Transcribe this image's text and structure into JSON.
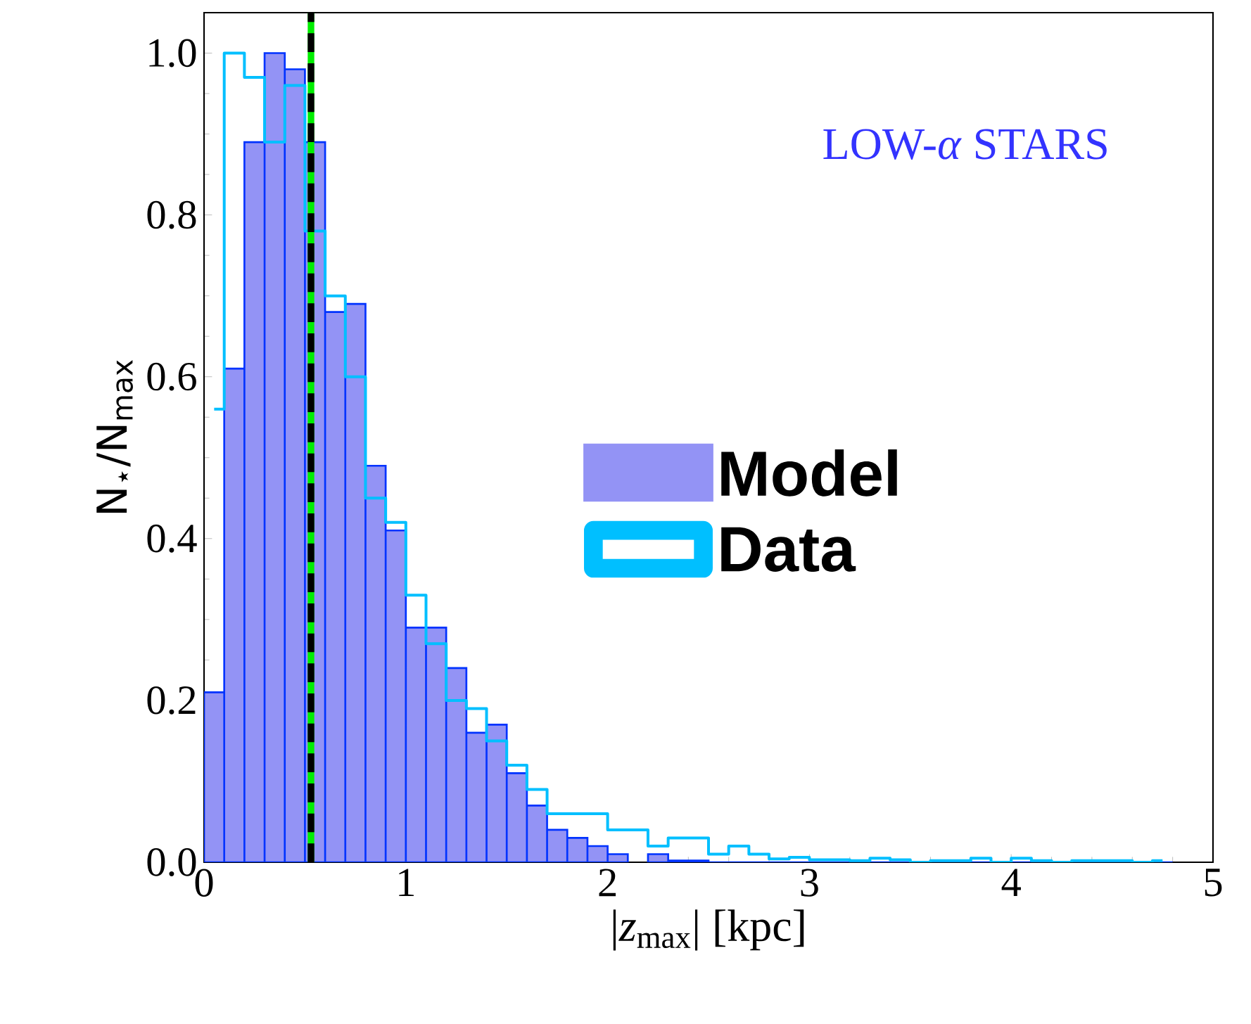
{
  "chart_data": {
    "type": "histogram",
    "xlabel": "|*z*$_{max}$| [kpc]",
    "ylabel": "N$_{⋆}$/N$_{max}$",
    "annotations": [
      "LOW-*α* STARS"
    ],
    "bins": [
      0,
      0.1,
      0.2,
      0.3,
      0.4,
      0.5,
      0.6,
      0.7,
      0.8,
      0.9,
      1.0,
      1.1,
      1.2,
      1.3,
      1.4,
      1.5,
      1.6,
      1.7,
      1.8,
      1.9,
      2.0,
      2.1,
      2.2,
      2.3,
      2.4,
      2.5,
      2.6,
      2.7,
      2.8,
      2.9,
      3.0,
      3.1,
      3.2,
      3.3,
      3.4,
      3.5,
      3.6,
      3.7,
      3.8,
      3.9,
      4.0,
      4.1,
      4.2,
      4.3,
      4.4,
      4.5,
      4.6,
      4.7,
      4.8
    ],
    "series": [
      {
        "name": "Model",
        "color": "#9393f5",
        "values": [
          0.21,
          0.61,
          0.89,
          1.0,
          0.98,
          0.89,
          0.68,
          0.69,
          0.49,
          0.41,
          0.29,
          0.29,
          0.24,
          0.16,
          0.17,
          0.11,
          0.07,
          0.04,
          0.03,
          0.02,
          0.01,
          null,
          0.01,
          0.002,
          0.002,
          0,
          0,
          0,
          0,
          0,
          0,
          0,
          0,
          0,
          0,
          0,
          0,
          0,
          0,
          0,
          0,
          0,
          0,
          0,
          0,
          0,
          0,
          0
        ]
      },
      {
        "name": "Data",
        "type": "step",
        "color": "#00bfff",
        "x": [
          0.05,
          0.15,
          0.25,
          0.35,
          0.45,
          0.55,
          0.65,
          0.75,
          0.85,
          0.95,
          1.05,
          1.15,
          1.25,
          1.35,
          1.45,
          1.55,
          1.65,
          1.75,
          1.85,
          1.95,
          2.05,
          2.15,
          2.25,
          2.35,
          2.45,
          2.55,
          2.65,
          2.75,
          2.85,
          2.95,
          3.05,
          3.15,
          3.25,
          3.35,
          3.45,
          3.55,
          3.65,
          3.75,
          3.85,
          3.95,
          4.05,
          4.15,
          4.25,
          4.35,
          4.45,
          4.55,
          4.65,
          4.75
        ],
        "values": [
          0.56,
          1.0,
          0.97,
          0.89,
          0.96,
          0.78,
          0.7,
          0.6,
          0.45,
          0.42,
          0.33,
          0.27,
          0.2,
          0.19,
          0.15,
          0.12,
          0.09,
          0.06,
          0.06,
          0.06,
          0.04,
          0.04,
          0.02,
          0.03,
          0.03,
          0.01,
          0.02,
          0.01,
          0.004,
          0.006,
          0.003,
          0.003,
          0.002,
          0.005,
          0.003,
          0,
          0.002,
          0.002,
          0.005,
          0,
          0.005,
          0.002,
          0,
          0.002,
          0.002,
          0.002,
          0,
          0.002
        ]
      }
    ],
    "ref_lines": [
      {
        "axis": "x",
        "value": 0.53,
        "color": "#00ee00",
        "line_style": "solid"
      },
      {
        "axis": "x",
        "value": 0.53,
        "color": "#000000",
        "line_style": "dashed"
      }
    ],
    "xlim": [
      0,
      5
    ],
    "ylim": [
      0,
      1.05
    ],
    "xticks": [
      {
        "value": 0,
        "label": "0"
      },
      {
        "value": 1,
        "label": "1"
      },
      {
        "value": 2,
        "label": "2"
      },
      {
        "value": 3,
        "label": "3"
      },
      {
        "value": 4,
        "label": "4"
      },
      {
        "value": 5,
        "label": "5"
      }
    ],
    "yticks": [
      {
        "value": 0,
        "label": "0.0"
      },
      {
        "value": 0.2,
        "label": "0.2"
      },
      {
        "value": 0.4,
        "label": "0.4"
      },
      {
        "value": 0.6,
        "label": "0.6"
      },
      {
        "value": 0.8,
        "label": "0.8"
      },
      {
        "value": 1.0,
        "label": "1.0"
      }
    ],
    "legend": "center",
    "grid": false
  }
}
